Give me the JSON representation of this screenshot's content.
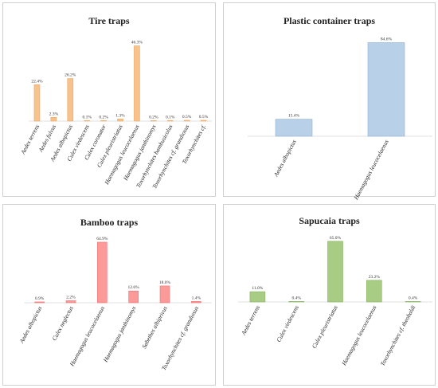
{
  "chart_data": [
    {
      "type": "bar",
      "title": "Tire traps",
      "categories": [
        "Aedes terrens",
        "Aedes fulvus",
        "Aedes albopictus",
        "Culex virdescens",
        "Culex coronator",
        "Culex pleuristriatus",
        "Haemagogus leucocelaenus",
        "Haemagogus janthinomys",
        "Toxorhynchites bambusicolus",
        "Toxorhynchites cf. grandiosus",
        "Toxorhynchites cf."
      ],
      "values": [
        22.4,
        2.3,
        26.2,
        0.1,
        0.2,
        1.3,
        46.3,
        0.2,
        0.1,
        0.5,
        0.5
      ],
      "labels": [
        "22.4%",
        "2.3%",
        "26.2%",
        "0.1%",
        "0.2%",
        "1.3%",
        "46.3%",
        "0.2%",
        "0.1%",
        "0.5%",
        "0.5%"
      ],
      "color": "#f8c28c",
      "stroke": "#f0a660",
      "ylim": [
        0,
        50
      ],
      "grid": false
    },
    {
      "type": "bar",
      "title": "Plastic container traps",
      "categories": [
        "Aedes albopictus",
        "Haemagogus leucocelaenus"
      ],
      "values": [
        15.4,
        84.6
      ],
      "labels": [
        "15.4%",
        "84.6%"
      ],
      "color": "#b8d0e8",
      "stroke": "#8eb2d6",
      "ylim": [
        0,
        90
      ],
      "grid": false
    },
    {
      "type": "bar",
      "title": "Bamboo traps",
      "categories": [
        "Aedes albopictus",
        "Culex neglectus",
        "Haemagogus leucocelaenus",
        "Haemagogus janthinomys",
        "Sabethes albiprivus",
        "Toxorhynchites cf. grandiosus"
      ],
      "values": [
        0.9,
        2.2,
        64.9,
        12.6,
        18.0,
        1.4
      ],
      "labels": [
        "0.9%",
        "2.2%",
        "64.9%",
        "12.6%",
        "18.0%",
        "1.4%"
      ],
      "color": "#fc9a9a",
      "stroke": "#f27070",
      "ylim": [
        0,
        70
      ],
      "grid": false
    },
    {
      "type": "bar",
      "title": "Sapucaia traps",
      "categories": [
        "Aedes terrens",
        "Culex virdescens",
        "Culex pleuristriatus",
        "Haemagogus leucocelaenus",
        "Toxorhynchites cf. theobaldi"
      ],
      "values": [
        11.0,
        0.4,
        65.0,
        23.2,
        0.4
      ],
      "labels": [
        "11.0%",
        "0.4%",
        "65.0%",
        "23.2%",
        "0.4%"
      ],
      "color": "#a8cc84",
      "stroke": "#86b360",
      "ylim": [
        0,
        70
      ],
      "grid": false
    }
  ]
}
